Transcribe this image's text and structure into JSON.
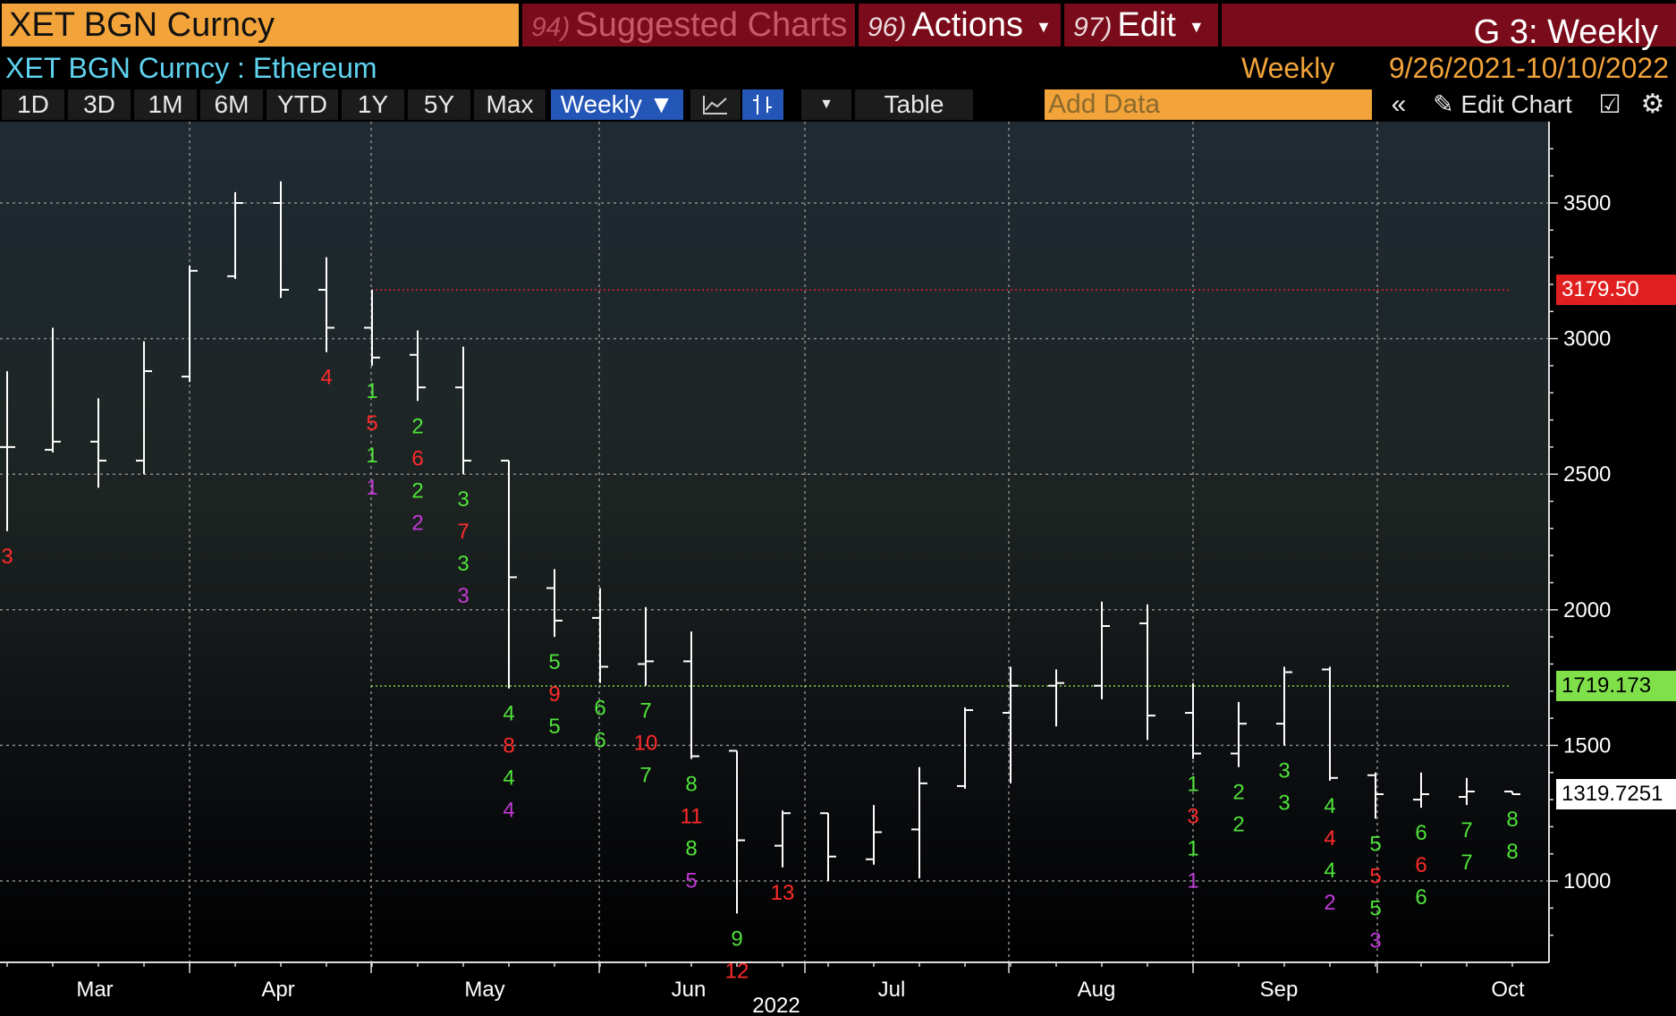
{
  "header": {
    "ticker": "XET BGN Curncy",
    "menu": [
      {
        "num": "94)",
        "label": "Suggested Charts",
        "dim": true
      },
      {
        "num": "96)",
        "label": "Actions",
        "dim": false
      },
      {
        "num": "97)",
        "label": "Edit",
        "dim": false
      }
    ],
    "graph_title": "G 3: Weekly"
  },
  "subheader": {
    "security": "XET BGN Curncy : Ethereum",
    "period": "Weekly",
    "range": "9/26/2021-10/10/2022"
  },
  "toolbar": {
    "periods": [
      "1D",
      "3D",
      "1M",
      "6M",
      "YTD",
      "1Y",
      "5Y",
      "Max"
    ],
    "frequency": "Weekly ▼",
    "table_label": "Table",
    "add_data_placeholder": "Add Data",
    "edit_chart_label": "Edit Chart",
    "icons": [
      "line-chart-icon",
      "bar-chart-icon",
      "dropdown-caret-icon",
      "collapse-icon",
      "pencil-icon",
      "edit-note-icon",
      "gear-icon"
    ]
  },
  "colors": {
    "bg_top": "#1f2a33",
    "bg_bottom": "#000000",
    "bar": "#ffffff",
    "grid": "#8a8a8a",
    "setup_green": "#4fe33a",
    "countdown_red": "#ff2a2a",
    "magenta": "#c23ad8",
    "resistance_red": "#e02020",
    "support_green": "#7fe04a"
  },
  "chart_data": {
    "type": "ohlc",
    "frequency": "Weekly",
    "ylim": [
      700,
      3800
    ],
    "y_ticks": [
      1000,
      1500,
      2000,
      2500,
      3000,
      3500
    ],
    "x_labels": [
      "Mar",
      "Apr",
      "May",
      "Jun",
      "Jul",
      "Aug",
      "Sep",
      "Oct"
    ],
    "year_label": "2022",
    "series": [
      {
        "name": "XET BGN Curncy",
        "bars": [
          {
            "o": 2600,
            "h": 2880,
            "l": 2290,
            "c": 2600
          },
          {
            "o": 2590,
            "h": 3040,
            "l": 2580,
            "c": 2620
          },
          {
            "o": 2620,
            "h": 2780,
            "l": 2450,
            "c": 2550
          },
          {
            "o": 2550,
            "h": 2990,
            "l": 2500,
            "c": 2880
          },
          {
            "o": 2860,
            "h": 3270,
            "l": 2840,
            "c": 3250
          },
          {
            "o": 3230,
            "h": 3540,
            "l": 3220,
            "c": 3500
          },
          {
            "o": 3500,
            "h": 3580,
            "l": 3150,
            "c": 3180
          },
          {
            "o": 3180,
            "h": 3300,
            "l": 2950,
            "c": 3040
          },
          {
            "o": 3040,
            "h": 3180,
            "l": 2900,
            "c": 2930
          },
          {
            "o": 2940,
            "h": 3030,
            "l": 2770,
            "c": 2820
          },
          {
            "o": 2820,
            "h": 2970,
            "l": 2500,
            "c": 2550
          },
          {
            "o": 2550,
            "h": 2550,
            "l": 1710,
            "c": 2120
          },
          {
            "o": 2080,
            "h": 2150,
            "l": 1900,
            "c": 1960
          },
          {
            "o": 1970,
            "h": 2080,
            "l": 1730,
            "c": 1790
          },
          {
            "o": 1800,
            "h": 2010,
            "l": 1720,
            "c": 1810
          },
          {
            "o": 1810,
            "h": 1920,
            "l": 1450,
            "c": 1460
          },
          {
            "o": 1480,
            "h": 1480,
            "l": 880,
            "c": 1150
          },
          {
            "o": 1130,
            "h": 1260,
            "l": 1050,
            "c": 1250
          },
          {
            "o": 1250,
            "h": 1250,
            "l": 1000,
            "c": 1090
          },
          {
            "o": 1080,
            "h": 1280,
            "l": 1060,
            "c": 1180
          },
          {
            "o": 1190,
            "h": 1420,
            "l": 1010,
            "c": 1360
          },
          {
            "o": 1350,
            "h": 1640,
            "l": 1340,
            "c": 1630
          },
          {
            "o": 1620,
            "h": 1790,
            "l": 1360,
            "c": 1720
          },
          {
            "o": 1720,
            "h": 1780,
            "l": 1570,
            "c": 1730
          },
          {
            "o": 1720,
            "h": 2030,
            "l": 1670,
            "c": 1940
          },
          {
            "o": 1950,
            "h": 2020,
            "l": 1520,
            "c": 1610
          },
          {
            "o": 1620,
            "h": 1730,
            "l": 1450,
            "c": 1470
          },
          {
            "o": 1470,
            "h": 1660,
            "l": 1420,
            "c": 1580
          },
          {
            "o": 1580,
            "h": 1790,
            "l": 1500,
            "c": 1770
          },
          {
            "o": 1780,
            "h": 1790,
            "l": 1370,
            "c": 1380
          },
          {
            "o": 1390,
            "h": 1400,
            "l": 1230,
            "c": 1320
          },
          {
            "o": 1300,
            "h": 1400,
            "l": 1270,
            "c": 1320
          },
          {
            "o": 1310,
            "h": 1380,
            "l": 1280,
            "c": 1330
          },
          {
            "o": 1330,
            "h": 1330,
            "l": 1320,
            "c": 1320
          }
        ]
      }
    ],
    "annotations": [
      {
        "bar": 0,
        "labels": [
          {
            "t": "3",
            "c": "red"
          }
        ]
      },
      {
        "bar": 7,
        "labels": [
          {
            "t": "4",
            "c": "red"
          }
        ]
      },
      {
        "bar": 8,
        "labels": [
          {
            "t": "1",
            "c": "green"
          },
          {
            "t": "5",
            "c": "red"
          },
          {
            "t": "1",
            "c": "green"
          },
          {
            "t": "1",
            "c": "magenta"
          }
        ]
      },
      {
        "bar": 9,
        "labels": [
          {
            "t": "2",
            "c": "green"
          },
          {
            "t": "6",
            "c": "red"
          },
          {
            "t": "2",
            "c": "green"
          },
          {
            "t": "2",
            "c": "magenta"
          }
        ]
      },
      {
        "bar": 10,
        "labels": [
          {
            "t": "3",
            "c": "green"
          },
          {
            "t": "7",
            "c": "red"
          },
          {
            "t": "3",
            "c": "green"
          },
          {
            "t": "3",
            "c": "magenta"
          }
        ]
      },
      {
        "bar": 11,
        "labels": [
          {
            "t": "4",
            "c": "green"
          },
          {
            "t": "8",
            "c": "red"
          },
          {
            "t": "4",
            "c": "green"
          },
          {
            "t": "4",
            "c": "magenta"
          }
        ]
      },
      {
        "bar": 12,
        "labels": [
          {
            "t": "5",
            "c": "green"
          },
          {
            "t": "9",
            "c": "red"
          },
          {
            "t": "5",
            "c": "green"
          }
        ]
      },
      {
        "bar": 13,
        "labels": [
          {
            "t": "6",
            "c": "green"
          },
          {
            "t": "6",
            "c": "green"
          }
        ]
      },
      {
        "bar": 14,
        "labels": [
          {
            "t": "7",
            "c": "green"
          },
          {
            "t": "10",
            "c": "red"
          },
          {
            "t": "7",
            "c": "green"
          }
        ]
      },
      {
        "bar": 15,
        "labels": [
          {
            "t": "8",
            "c": "green"
          },
          {
            "t": "11",
            "c": "red"
          },
          {
            "t": "8",
            "c": "green"
          },
          {
            "t": "5",
            "c": "magenta"
          }
        ]
      },
      {
        "bar": 16,
        "labels": [
          {
            "t": "9",
            "c": "green"
          },
          {
            "t": "12",
            "c": "red"
          }
        ]
      },
      {
        "bar": 17,
        "labels": [
          {
            "t": "13",
            "c": "red"
          }
        ]
      },
      {
        "bar": 26,
        "labels": [
          {
            "t": "1",
            "c": "green"
          },
          {
            "t": "3",
            "c": "red"
          },
          {
            "t": "1",
            "c": "green"
          },
          {
            "t": "1",
            "c": "magenta"
          }
        ]
      },
      {
        "bar": 27,
        "labels": [
          {
            "t": "2",
            "c": "green"
          },
          {
            "t": "2",
            "c": "green"
          }
        ]
      },
      {
        "bar": 28,
        "labels": [
          {
            "t": "3",
            "c": "green"
          },
          {
            "t": "3",
            "c": "green"
          }
        ]
      },
      {
        "bar": 29,
        "labels": [
          {
            "t": "4",
            "c": "green"
          },
          {
            "t": "4",
            "c": "red"
          },
          {
            "t": "4",
            "c": "green"
          },
          {
            "t": "2",
            "c": "magenta"
          }
        ]
      },
      {
        "bar": 30,
        "labels": [
          {
            "t": "5",
            "c": "green"
          },
          {
            "t": "5",
            "c": "red"
          },
          {
            "t": "5",
            "c": "green"
          },
          {
            "t": "3",
            "c": "magenta"
          }
        ]
      },
      {
        "bar": 31,
        "labels": [
          {
            "t": "6",
            "c": "green"
          },
          {
            "t": "6",
            "c": "red"
          },
          {
            "t": "6",
            "c": "green"
          }
        ]
      },
      {
        "bar": 32,
        "labels": [
          {
            "t": "7",
            "c": "green"
          },
          {
            "t": "7",
            "c": "green"
          }
        ]
      },
      {
        "bar": 33,
        "labels": [
          {
            "t": "8",
            "c": "green"
          },
          {
            "t": "8",
            "c": "green"
          }
        ]
      }
    ],
    "reference_lines": [
      {
        "value": 3179.5,
        "label": "3179.50",
        "color": "red"
      },
      {
        "value": 1719.173,
        "label": "1719.173",
        "color": "green"
      }
    ],
    "last_price": {
      "value": 1319.7251,
      "label": "1319.7251"
    }
  }
}
